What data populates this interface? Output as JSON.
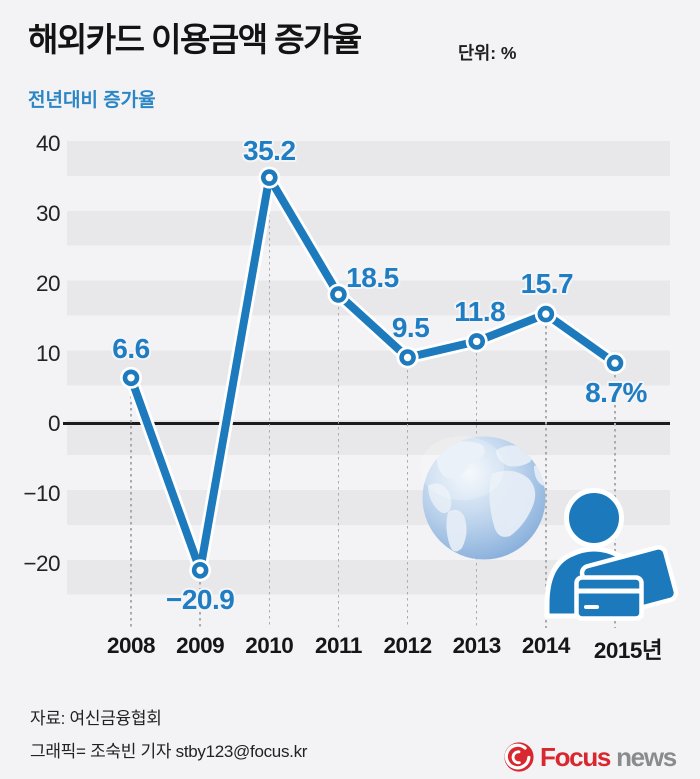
{
  "header": {
    "title": "해외카드 이용금액 증가율",
    "unit": "단위: %",
    "subtitle": "전년대비 증가율"
  },
  "chart_data": {
    "type": "line",
    "categories": [
      "2008",
      "2009",
      "2010",
      "2011",
      "2012",
      "2013",
      "2014",
      "2015년"
    ],
    "values": [
      6.6,
      -20.9,
      35.2,
      18.5,
      9.5,
      11.8,
      15.7,
      8.7
    ],
    "point_labels": [
      "6.6",
      "−20.9",
      "35.2",
      "18.5",
      "9.5",
      "11.8",
      "15.7",
      "8.7%"
    ],
    "yticks": [
      40,
      30,
      20,
      10,
      0,
      -10,
      -20
    ],
    "ytick_labels": [
      "40",
      "30",
      "20",
      "10",
      "0",
      "−10",
      "−20"
    ],
    "ylim": [
      -25,
      40
    ],
    "title": "해외카드 이용금액 증가율",
    "series_label": "전년대비 증가율",
    "unit": "%",
    "grid": "horizontal-stripes",
    "legend_position": "top-left",
    "line_color": "#1d7abc",
    "label_color": "#1f7dc4",
    "stripe_color": "#e8e8ea",
    "background_color": "#f3f3f5",
    "zero_line_color": "#1b1b1d"
  },
  "illustration": {
    "items": [
      "globe",
      "person",
      "credit-cards"
    ],
    "blue": "#1c79bb"
  },
  "footer": {
    "source": "자료: 여신금융협회",
    "credit": "그래픽= 조숙빈 기자 stby123@focus.kr"
  },
  "logo": {
    "word1": "Focus",
    "word2": "news",
    "word1_color": "#d8272e",
    "word2_color": "#898b8e"
  }
}
